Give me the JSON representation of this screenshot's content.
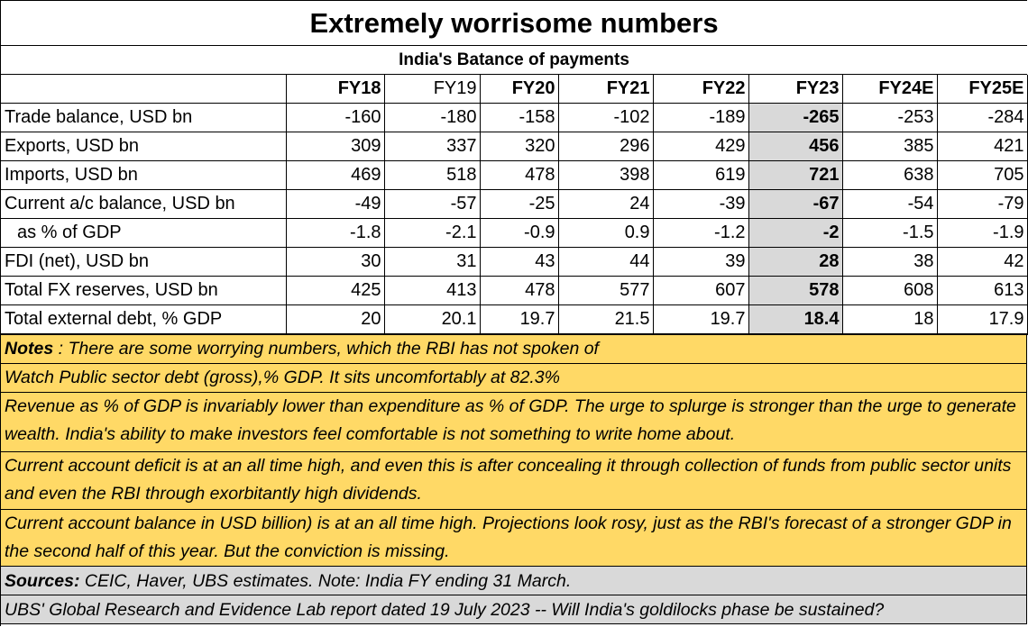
{
  "title": "Extremely worrisome numbers",
  "subtitle": "India's Batance of payments",
  "columns": [
    "FY18",
    "FY19",
    "FY20",
    "FY21",
    "FY22",
    "FY23",
    "FY24E",
    "FY25E"
  ],
  "rows": [
    {
      "label": "Trade balance, USD bn",
      "values": [
        "-160",
        "-180",
        "-158",
        "-102",
        "-189",
        "-265",
        "-253",
        "-284"
      ]
    },
    {
      "label": "Exports, USD bn",
      "values": [
        "309",
        "337",
        "320",
        "296",
        "429",
        "456",
        "385",
        "421"
      ]
    },
    {
      "label": "Imports, USD bn",
      "values": [
        "469",
        "518",
        "478",
        "398",
        "619",
        "721",
        "638",
        "705"
      ]
    },
    {
      "label": "Current a/c balance, USD bn",
      "values": [
        "-49",
        "-57",
        "-25",
        "24",
        "-39",
        "-67",
        "-54",
        "-79"
      ]
    },
    {
      "label": "as % of GDP",
      "values": [
        "-1.8",
        "-2.1",
        "-0.9",
        "0.9",
        "-1.2",
        "-2",
        "-1.5",
        "-1.9"
      ]
    },
    {
      "label": "FDI (net), USD bn",
      "values": [
        "30",
        "31",
        "43",
        "44",
        "39",
        "28",
        "38",
        "42"
      ]
    },
    {
      "label": "Total FX reserves, USD bn",
      "values": [
        "425",
        "413",
        "478",
        "577",
        "607",
        "578",
        "608",
        "613"
      ]
    },
    {
      "label": "Total external debt, % GDP",
      "values": [
        "20",
        "20.1",
        "19.7",
        "21.5",
        "19.7",
        "18.4",
        "18",
        "17.9"
      ]
    }
  ],
  "notes": {
    "label": "Notes",
    "line1": " : There are some worrying numbers, which the RBI has not spoken of",
    "line2": "Watch Public sector debt (gross),% GDP. It sits uncomfortably at 82.3%",
    "line3": "Revenue as % of GDP is invariably lower than expenditure as % of GDP.  The urge to splurge is stronger than the urge to generate wealth.  India's ability to make investors feel comfortable is not something to write home about.",
    "line4": "Current account deficit is at an all time high, and even this is after concealing it through collection of funds from public sector units and even the RBI through exorbitantly high dividends.",
    "line5": "Current account balance in USD billion)  is at an all time high.  Projections look rosy, just as the RBI's forecast of a stronger GDP in the second half of this year. But the conviction is missing."
  },
  "sources": {
    "label": "Sources:",
    "text": "  CEIC, Haver, UBS estimates. Note: India FY ending 31 March."
  },
  "report": "UBS' Global Research and Evidence Lab report dated 19 July 2023 -- Will India's goldilocks phase be sustained?",
  "colors": {
    "highlight": "#d9d9d9",
    "notes_bg": "#ffd966",
    "footer_bg": "#d9d9d9"
  }
}
